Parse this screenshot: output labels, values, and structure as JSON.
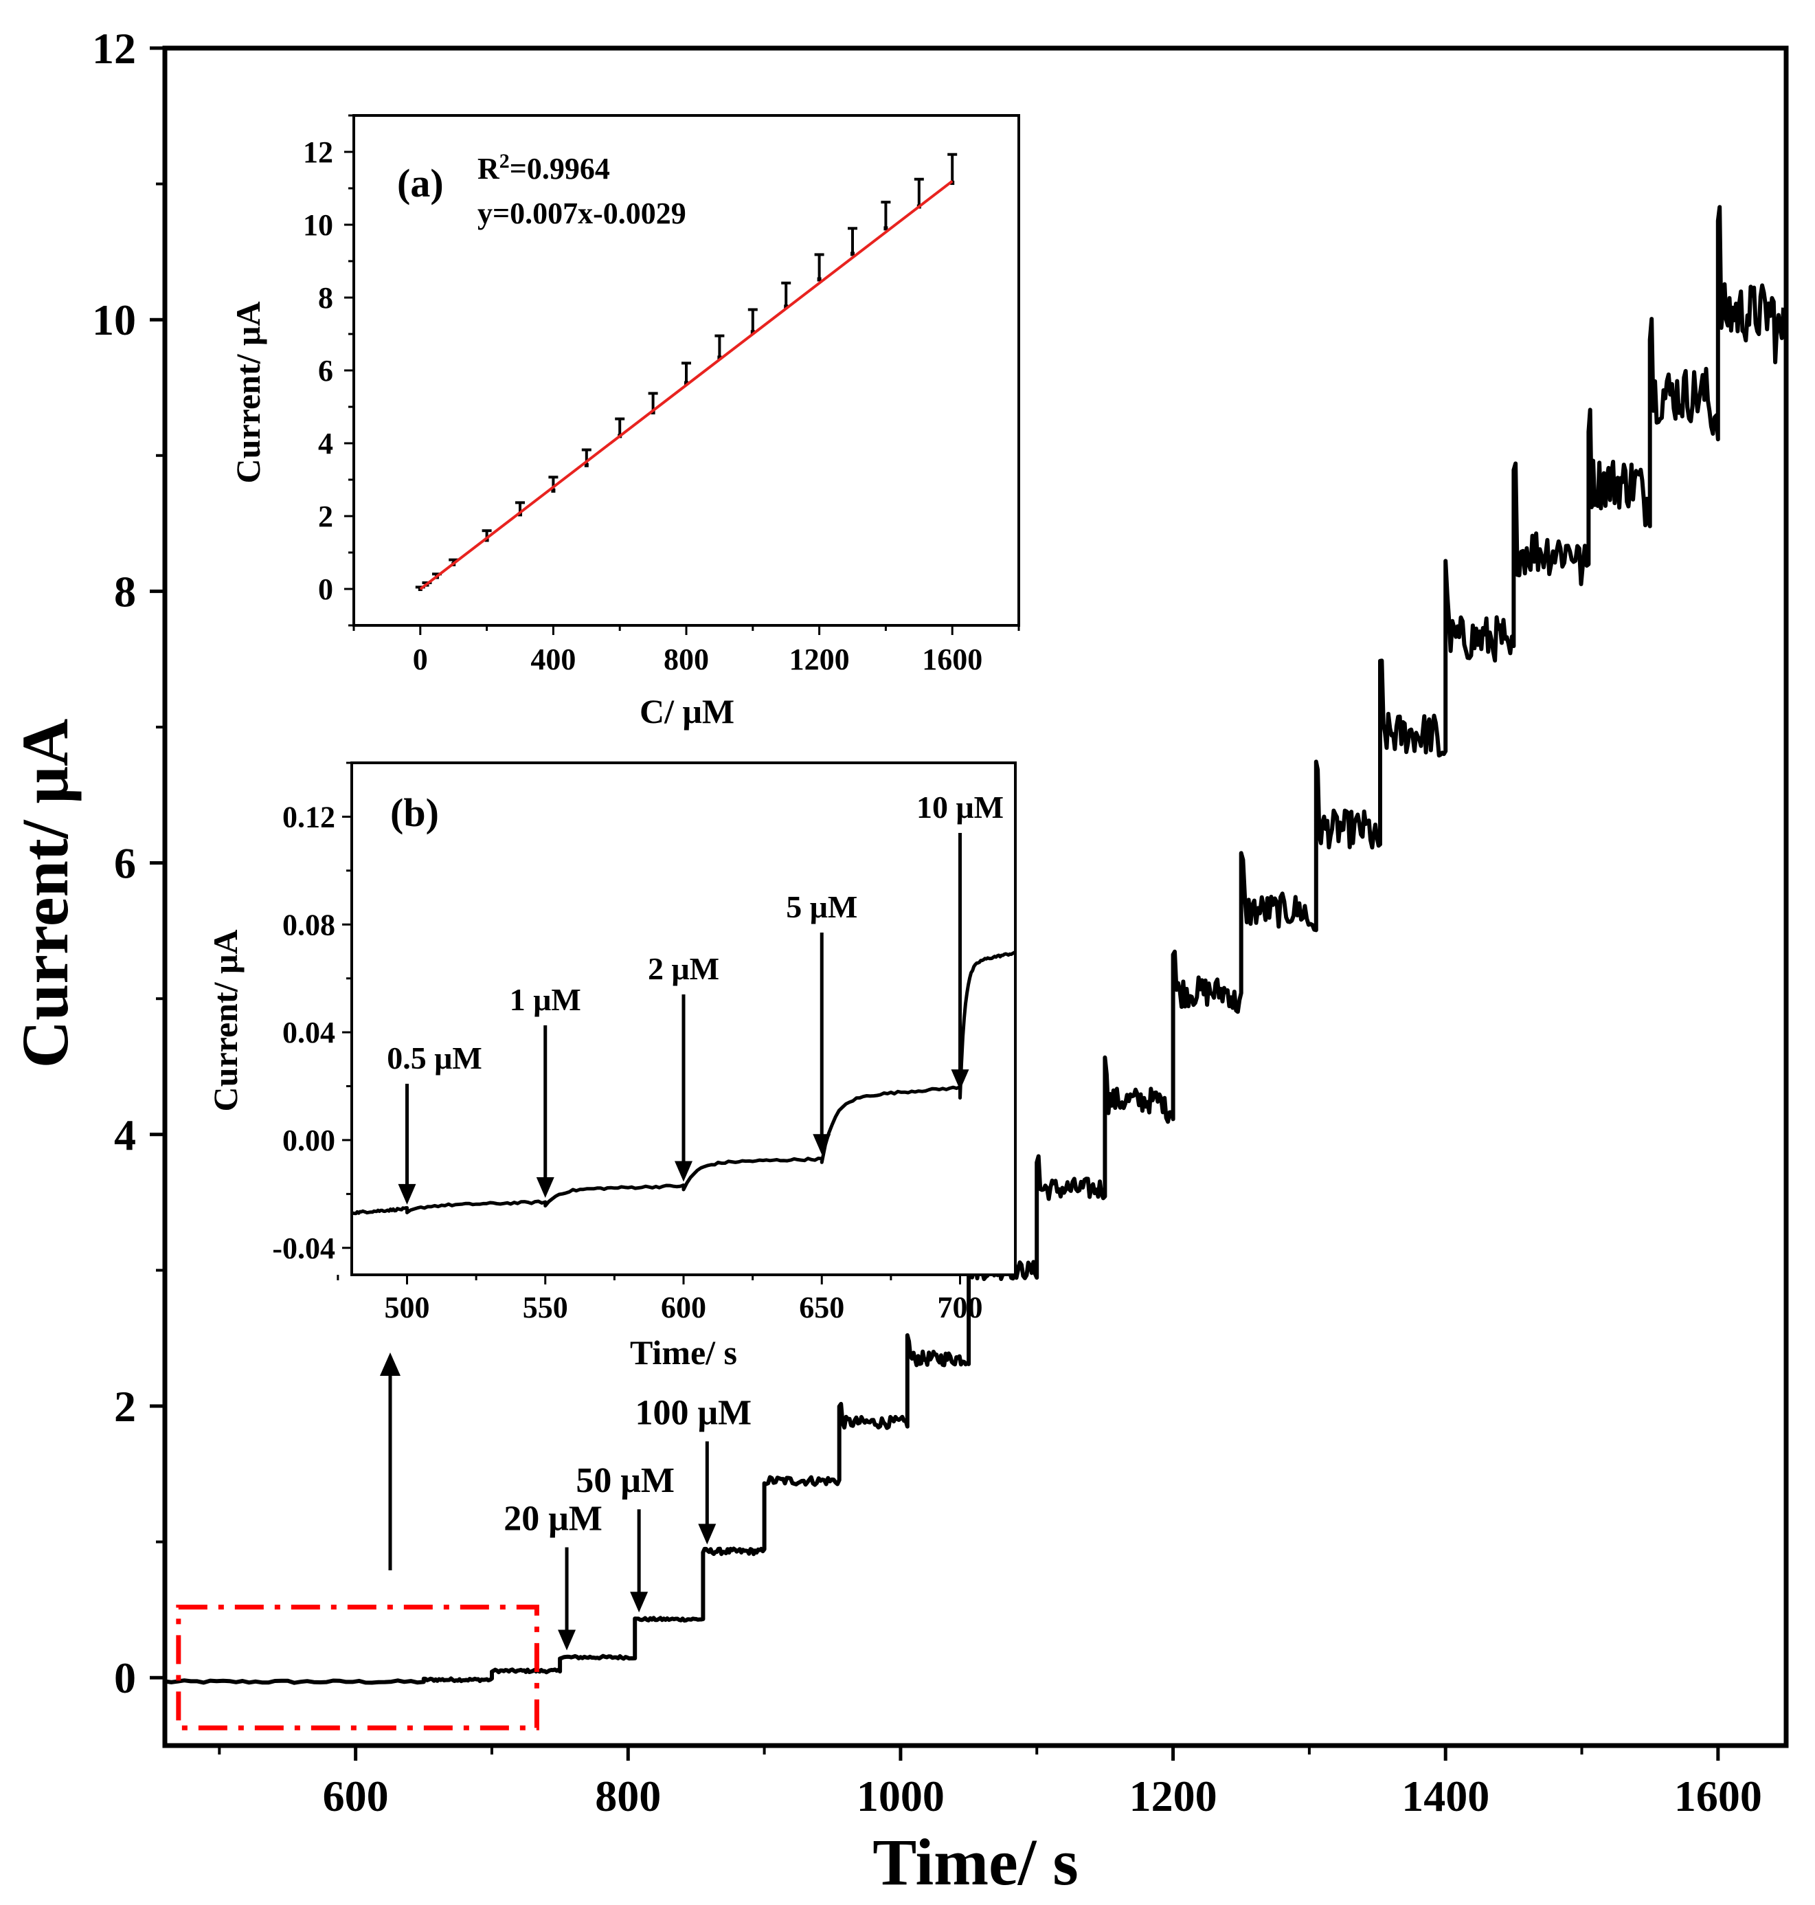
{
  "chart_data": [
    {
      "id": "main",
      "type": "line",
      "title": "",
      "xlabel": "Time/ s",
      "ylabel": "Current/ μA",
      "xlim": [
        460,
        1650
      ],
      "ylim": [
        -0.5,
        12
      ],
      "xticks": [
        600,
        800,
        1000,
        1200,
        1400,
        1600
      ],
      "yticks": [
        0,
        2,
        4,
        6,
        8,
        10,
        12
      ],
      "steps": [
        {
          "t": 460,
          "level": -0.03
        },
        {
          "t": 650,
          "level": -0.015
        },
        {
          "t": 700,
          "level": 0.05
        },
        {
          "t": 750,
          "level": 0.15
        },
        {
          "t": 805,
          "level": 0.43
        },
        {
          "t": 855,
          "level": 0.93
        },
        {
          "t": 900,
          "level": 1.45
        },
        {
          "t": 955,
          "level": 1.88
        },
        {
          "t": 1005,
          "level": 2.35
        },
        {
          "t": 1050,
          "level": 3.0
        },
        {
          "t": 1100,
          "level": 3.6
        },
        {
          "t": 1150,
          "level": 4.25
        },
        {
          "t": 1200,
          "level": 5.05
        },
        {
          "t": 1250,
          "level": 5.65
        },
        {
          "t": 1305,
          "level": 6.25
        },
        {
          "t": 1352,
          "level": 6.95
        },
        {
          "t": 1400,
          "level": 7.65
        },
        {
          "t": 1450,
          "level": 8.3
        },
        {
          "t": 1505,
          "level": 8.8
        },
        {
          "t": 1550,
          "level": 9.45
        },
        {
          "t": 1600,
          "level": 10.05
        }
      ],
      "end_t": 1648,
      "annotations": [
        {
          "text": "20 μM",
          "t": 755
        },
        {
          "text": "50 μM",
          "t": 808
        },
        {
          "text": "100 μM",
          "t": 858
        }
      ],
      "highlight_box": {
        "t": [
          470,
          733
        ],
        "current": [
          -0.37,
          0.52
        ],
        "color": "#ff0000"
      }
    },
    {
      "id": "inset-a",
      "type": "scatter",
      "panel": "(a)",
      "xlabel": "C/ μM",
      "ylabel": "Current/ μA",
      "xlim": [
        -200,
        1800
      ],
      "ylim": [
        -1,
        13
      ],
      "xticks": [
        0,
        400,
        800,
        1200,
        1600
      ],
      "yticks": [
        0,
        2,
        4,
        6,
        8,
        10,
        12
      ],
      "r2_text": "R2=0.9964",
      "r2_prefix": "R",
      "r2_sup": "2",
      "r2_value": "=0.9964",
      "equation": "y=0.007x-0.0029",
      "fit": {
        "slope": 0.007,
        "intercept": -0.0029,
        "x_range": [
          0,
          1600
        ],
        "color": "#e8231f"
      },
      "x": [
        0,
        20,
        50,
        100,
        200,
        300,
        400,
        500,
        600,
        700,
        800,
        900,
        1000,
        1100,
        1200,
        1300,
        1400,
        1500,
        1600
      ],
      "y": [
        0.0,
        0.12,
        0.33,
        0.68,
        1.35,
        2.05,
        2.7,
        3.4,
        4.2,
        4.85,
        5.65,
        6.35,
        7.05,
        7.75,
        8.5,
        9.2,
        9.9,
        10.5,
        11.15
      ],
      "yerr": [
        0.05,
        0.05,
        0.08,
        0.12,
        0.25,
        0.32,
        0.37,
        0.42,
        0.47,
        0.52,
        0.55,
        0.6,
        0.62,
        0.65,
        0.68,
        0.7,
        0.72,
        0.75,
        0.78
      ]
    },
    {
      "id": "inset-b",
      "type": "line",
      "panel": "(b)",
      "xlabel": "Time/ s",
      "ylabel": "Current/ μA",
      "xlim": [
        480,
        720
      ],
      "ylim": [
        -0.05,
        0.14
      ],
      "xticks": [
        500,
        550,
        600,
        650,
        700
      ],
      "yticks": [
        -0.04,
        0.0,
        0.04,
        0.08,
        0.12
      ],
      "ytick_labels": [
        "-0.04",
        "0.00",
        "0.04",
        "0.08",
        "0.12"
      ],
      "steps": [
        {
          "t": 480,
          "level": -0.027
        },
        {
          "t": 500,
          "level": -0.0245
        },
        {
          "t": 550,
          "level": -0.0185
        },
        {
          "t": 600,
          "level": -0.0085
        },
        {
          "t": 650,
          "level": 0.0155
        },
        {
          "t": 700,
          "level": 0.0655
        }
      ],
      "end_t": 720,
      "annotations": [
        {
          "text": "0.5 μM",
          "t": 500
        },
        {
          "text": "1 μM",
          "t": 550
        },
        {
          "text": "2 μM",
          "t": 600
        },
        {
          "text": "5 μM",
          "t": 650
        },
        {
          "text": "10 μM",
          "t": 700
        }
      ]
    }
  ]
}
